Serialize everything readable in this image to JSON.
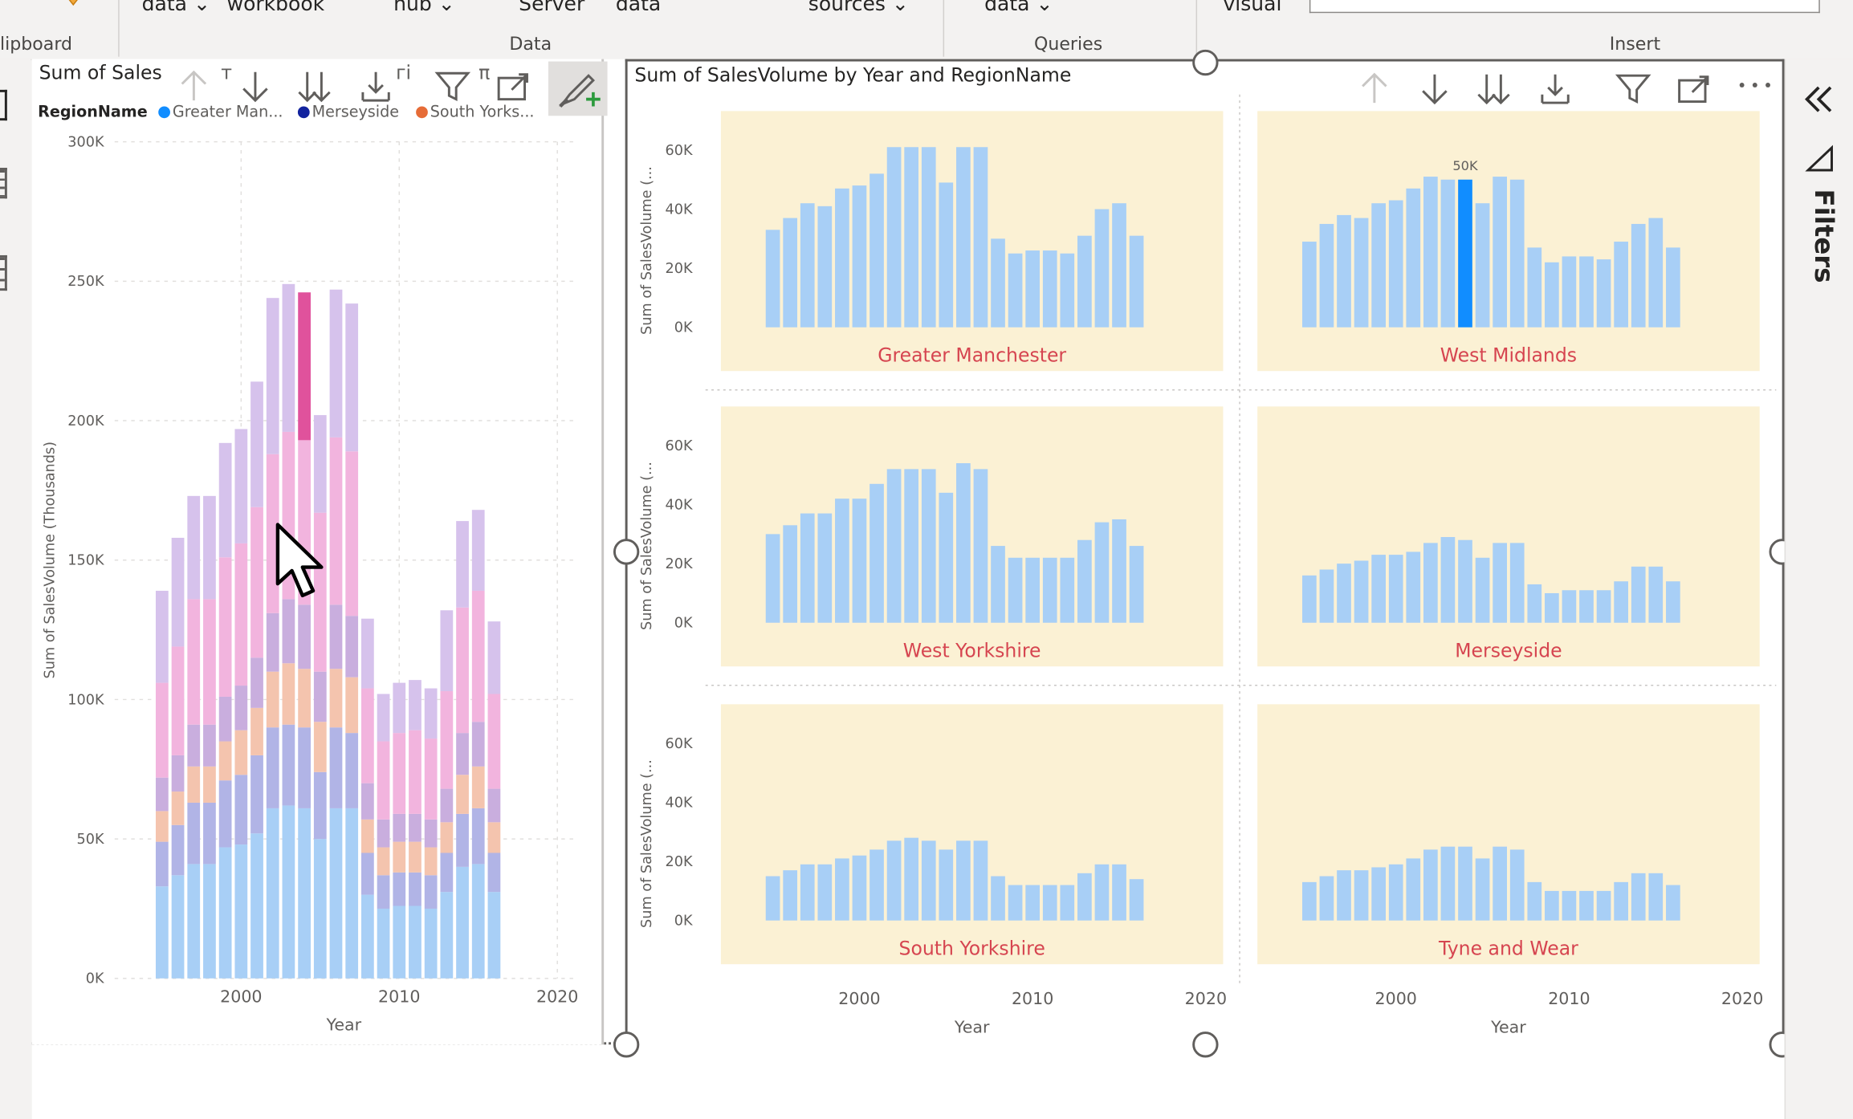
{
  "ribbon": {
    "top_items": [
      {
        "label": "data ⌄",
        "x": 120
      },
      {
        "label": "workbook",
        "x": 192
      },
      {
        "label": "hub ⌄",
        "x": 333
      },
      {
        "label": "Server",
        "x": 439
      },
      {
        "label": "data",
        "x": 521
      },
      {
        "label": "sources ⌄",
        "x": 684
      },
      {
        "label": "data ⌄",
        "x": 833
      },
      {
        "label": "visual",
        "x": 1035
      }
    ],
    "groups": {
      "clipboard": "lipboard",
      "data": "Data",
      "queries": "Queries",
      "insert": "Insert"
    }
  },
  "left_visual": {
    "title": "Sum of Sales",
    "title_fragments": [
      "т",
      "гі",
      "π"
    ],
    "legend": {
      "label": "RegionName",
      "items": [
        {
          "name": "Greater Man...",
          "color": "#118dff"
        },
        {
          "name": "Merseyside",
          "color": "#12239e"
        },
        {
          "name": "South Yorks...",
          "color": "#e66c37"
        }
      ]
    },
    "chart_data": {
      "type": "bar",
      "stacked": true,
      "xlabel": "Year",
      "ylabel": "Sum of SalesVolume (Thousands)",
      "ylim": [
        0,
        300000
      ],
      "y_ticks": [
        "0K",
        "50K",
        "100K",
        "150K",
        "200K",
        "250K",
        "300K"
      ],
      "x_ticks": [
        "2000",
        "2010",
        "2020"
      ],
      "x": [
        1995,
        1996,
        1997,
        1998,
        1999,
        2000,
        2001,
        2002,
        2003,
        2004,
        2005,
        2006,
        2007,
        2008,
        2009,
        2010,
        2011,
        2012,
        2013,
        2014,
        2015,
        2016
      ],
      "highlight": {
        "year": 2004,
        "series_index": 5
      },
      "series_colors": [
        "#a8cff6",
        "#b1b4e6",
        "#f4c4ae",
        "#c9aede",
        "#f2b4de",
        "#d6c2ec"
      ],
      "series": [
        {
          "values": [
            33000,
            37000,
            41000,
            41000,
            47000,
            48000,
            52000,
            61000,
            62000,
            61000,
            50000,
            61000,
            61000,
            30000,
            25000,
            26000,
            26000,
            25000,
            31000,
            40000,
            41000,
            31000
          ]
        },
        {
          "values": [
            16000,
            18000,
            22000,
            22000,
            24000,
            25000,
            28000,
            29000,
            29000,
            29000,
            24000,
            29000,
            27000,
            15000,
            12000,
            12000,
            12000,
            12000,
            14000,
            19000,
            20000,
            14000
          ]
        },
        {
          "values": [
            11000,
            12000,
            13000,
            13000,
            14000,
            16000,
            17000,
            20000,
            22000,
            21000,
            18000,
            21000,
            20000,
            12000,
            10000,
            11000,
            11000,
            10000,
            11000,
            14000,
            15000,
            11000
          ]
        },
        {
          "values": [
            12000,
            13000,
            15000,
            15000,
            16000,
            16000,
            18000,
            21000,
            23000,
            23000,
            18000,
            23000,
            22000,
            13000,
            10000,
            10000,
            10000,
            10000,
            12000,
            15000,
            16000,
            12000
          ]
        },
        {
          "values": [
            34000,
            39000,
            45000,
            45000,
            50000,
            51000,
            54000,
            57000,
            60000,
            59000,
            57000,
            60000,
            59000,
            34000,
            28000,
            29000,
            30000,
            29000,
            35000,
            45000,
            47000,
            34000
          ]
        },
        {
          "values": [
            33000,
            39000,
            37000,
            37000,
            41000,
            41000,
            45000,
            56000,
            53000,
            53000,
            35000,
            53000,
            53000,
            25000,
            17000,
            18000,
            18000,
            18000,
            29000,
            31000,
            29000,
            26000
          ]
        }
      ]
    }
  },
  "right_visual": {
    "title": "Sum of SalesVolume by Year and RegionName",
    "chart_data": {
      "type": "bar",
      "small_multiples": true,
      "xlabel": "Year",
      "ylabel": "Sum of SalesVolume (...",
      "ylabels_truncated": [
        "Sum of SalesVolume (...",
        "Sum of SalesVolume (...",
        "Sum of SalesVolume (..."
      ],
      "ylim": [
        0,
        70000
      ],
      "y_ticks": [
        "0K",
        "20K",
        "40K",
        "60K"
      ],
      "x_ticks": [
        "2000",
        "2010",
        "2020"
      ],
      "x": [
        1995,
        1996,
        1997,
        1998,
        1999,
        2000,
        2001,
        2002,
        2003,
        2004,
        2005,
        2006,
        2007,
        2008,
        2009,
        2010,
        2011,
        2012,
        2013,
        2014,
        2015,
        2016
      ],
      "panels": [
        {
          "name": "Greater Manchester",
          "values": [
            33000,
            37000,
            42000,
            41000,
            47000,
            48000,
            52000,
            61000,
            61000,
            61000,
            49000,
            61000,
            61000,
            30000,
            25000,
            26000,
            26000,
            25000,
            31000,
            40000,
            42000,
            31000
          ]
        },
        {
          "name": "West Midlands",
          "values": [
            29000,
            35000,
            38000,
            37000,
            42000,
            43000,
            47000,
            51000,
            50000,
            50000,
            42000,
            51000,
            50000,
            27000,
            22000,
            24000,
            24000,
            23000,
            29000,
            35000,
            37000,
            27000
          ],
          "highlight_index": 9,
          "highlight_label": "50K"
        },
        {
          "name": "West Yorkshire",
          "values": [
            30000,
            33000,
            37000,
            37000,
            42000,
            42000,
            47000,
            52000,
            52000,
            52000,
            44000,
            54000,
            52000,
            26000,
            22000,
            22000,
            22000,
            22000,
            28000,
            34000,
            35000,
            26000
          ]
        },
        {
          "name": "Merseyside",
          "values": [
            16000,
            18000,
            20000,
            21000,
            23000,
            23000,
            24000,
            27000,
            29000,
            28000,
            22000,
            27000,
            27000,
            13000,
            10000,
            11000,
            11000,
            11000,
            14000,
            19000,
            19000,
            14000
          ]
        },
        {
          "name": "South Yorkshire",
          "values": [
            15000,
            17000,
            19000,
            19000,
            21000,
            22000,
            24000,
            27000,
            28000,
            27000,
            24000,
            27000,
            27000,
            15000,
            12000,
            12000,
            12000,
            12000,
            16000,
            19000,
            19000,
            14000
          ]
        },
        {
          "name": "Tyne and Wear",
          "values": [
            13000,
            15000,
            17000,
            17000,
            18000,
            19000,
            21000,
            24000,
            25000,
            25000,
            21000,
            25000,
            24000,
            13000,
            10000,
            10000,
            10000,
            10000,
            13000,
            16000,
            16000,
            12000
          ]
        }
      ]
    }
  },
  "right_pane": {
    "filters_label": "Filters"
  },
  "colors": {
    "bar": "#a8cff6",
    "bar_highlight": "#118dff",
    "panel_bg": "#fbf1d4",
    "panel_label": "#d64550",
    "stack_highlight": "#e0529c"
  }
}
